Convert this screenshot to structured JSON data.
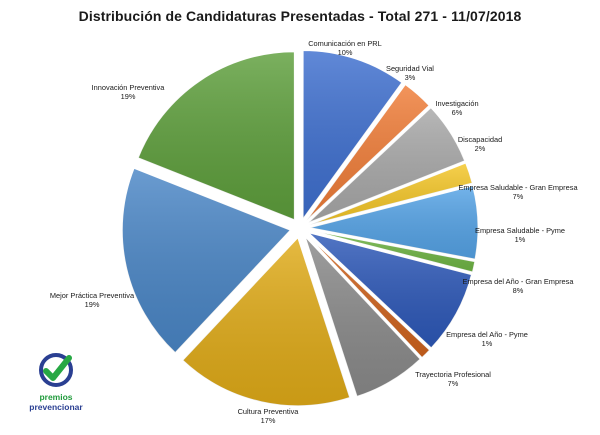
{
  "chart_data": {
    "type": "pie",
    "title": "Distribución de Candidaturas Presentadas - Total 271 - 11/07/2018",
    "slices": [
      {
        "label": "Comunicación en PRL",
        "pct_label": "10%",
        "value": 10,
        "color": "#3e6fcf"
      },
      {
        "label": "Seguridad Vial",
        "pct_label": "3%",
        "value": 3,
        "color": "#f07d38"
      },
      {
        "label": "Investigación",
        "pct_label": "6%",
        "value": 6,
        "color": "#a8a8a8"
      },
      {
        "label": "Discapacidad",
        "pct_label": "2%",
        "value": 2,
        "color": "#f5c728"
      },
      {
        "label": "Empresa Saludable - Gran Empresa",
        "pct_label": "7%",
        "value": 7,
        "color": "#55a3e6"
      },
      {
        "label": "Empresa Saludable - Pyme",
        "pct_label": "1%",
        "value": 1,
        "color": "#6fb544"
      },
      {
        "label": "Empresa del Año - Gran Empresa",
        "pct_label": "8%",
        "value": 8,
        "color": "#2d58b8"
      },
      {
        "label": "Empresa del Año - Pyme",
        "pct_label": "1%",
        "value": 1,
        "color": "#d0641e"
      },
      {
        "label": "Trayectoria Profesional",
        "pct_label": "7%",
        "value": 7,
        "color": "#8a8a8a"
      },
      {
        "label": "Cultura Preventiva",
        "pct_label": "17%",
        "value": 17,
        "color": "#e0ab18"
      },
      {
        "label": "Mejor Práctica Preventiva",
        "pct_label": "19%",
        "value": 19,
        "color": "#4a86c6"
      },
      {
        "label": "Innovación Preventiva",
        "pct_label": "19%",
        "value": 19,
        "color": "#5e9f3c"
      }
    ],
    "legend": "none",
    "labels": "outside"
  },
  "logo": {
    "name": "premios-prevencionar-logo",
    "line1": "premios",
    "line2": "prevencionar",
    "check_color": "#27a844",
    "ring_color": "#2a3f92"
  }
}
